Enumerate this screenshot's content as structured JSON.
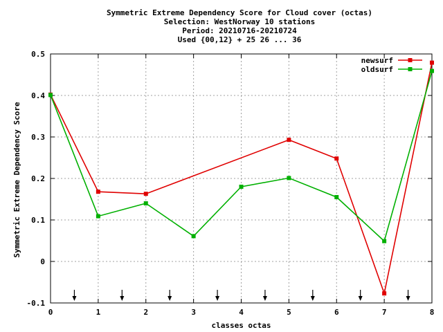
{
  "chart_data": {
    "type": "line",
    "title_lines": [
      "Symmetric Extreme Dependency Score  for Cloud cover (octas)",
      "Selection: WestNorway     10 stations",
      "Period: 20210716-20210724",
      "Used {00,12} + 25 26 ... 36"
    ],
    "xlabel": "classes octas",
    "ylabel": "Symmetric Extreme Dependency Score",
    "xlim": [
      0,
      8
    ],
    "ylim": [
      -0.1,
      0.5
    ],
    "xticks": [
      0,
      1,
      2,
      3,
      4,
      5,
      6,
      7,
      8
    ],
    "xtick_labels": [
      "0",
      "1",
      "2",
      "3",
      "4",
      "5",
      "6",
      "7",
      "8"
    ],
    "yticks": [
      -0.1,
      0,
      0.1,
      0.2,
      0.3,
      0.4,
      0.5
    ],
    "ytick_labels": [
      "-0.1",
      "0",
      "0.1",
      "0.2",
      "0.3",
      "0.4",
      "0.5"
    ],
    "grid": true,
    "legend_position": "top-right",
    "arrow_markers_x": [
      0.5,
      1.5,
      2.5,
      3.5,
      4.5,
      5.5,
      6.5,
      7.5
    ],
    "series": [
      {
        "name": "newsurf",
        "color": "#e00000",
        "x": [
          0,
          1,
          2,
          5,
          6,
          7,
          8
        ],
        "values": [
          0.402,
          0.168,
          0.163,
          0.293,
          0.248,
          -0.077,
          0.479
        ]
      },
      {
        "name": "oldsurf",
        "color": "#00b000",
        "x": [
          0,
          1,
          2,
          3,
          4,
          5,
          6,
          7,
          8
        ],
        "values": [
          0.401,
          0.109,
          0.14,
          0.061,
          0.18,
          0.201,
          0.155,
          0.049,
          0.459
        ]
      }
    ]
  }
}
